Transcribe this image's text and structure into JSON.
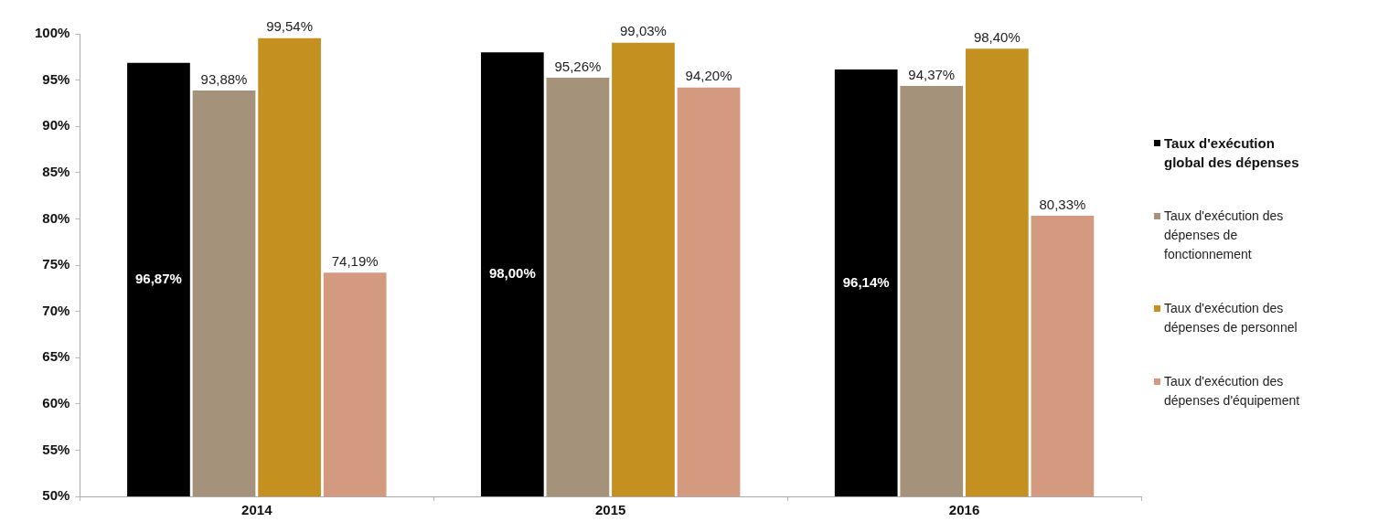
{
  "chart_data": {
    "type": "bar",
    "categories": [
      "2014",
      "2015",
      "2016"
    ],
    "series": [
      {
        "name": "Taux d'exécution global des dépenses",
        "color": "#000000",
        "values": [
          96.87,
          98.0,
          96.14
        ],
        "value_labels": [
          "96,87%",
          "98,00%",
          "96,14%"
        ]
      },
      {
        "name": "Taux d'exécution des dépenses de fonctionnement",
        "color": "#a4937a",
        "values": [
          93.88,
          95.26,
          94.37
        ],
        "value_labels": [
          "93,88%",
          "95,26%",
          "94,37%"
        ]
      },
      {
        "name": "Taux d'exécution des dépenses de personnel",
        "color": "#c4901f",
        "values": [
          99.54,
          99.03,
          98.4
        ],
        "value_labels": [
          "99,54%",
          "99,03%",
          "98,40%"
        ]
      },
      {
        "name": "Taux d'exécution des dépenses d'équipement",
        "color": "#d49a80",
        "values": [
          74.19,
          94.2,
          80.33
        ],
        "value_labels": [
          "74,19%",
          "94,20%",
          "80,33%"
        ]
      }
    ],
    "ylim": [
      50,
      100
    ],
    "yticks": [
      {
        "value": 50,
        "label": "50%"
      },
      {
        "value": 55,
        "label": "55%"
      },
      {
        "value": 60,
        "label": "60%"
      },
      {
        "value": 65,
        "label": "65%"
      },
      {
        "value": 70,
        "label": "70%"
      },
      {
        "value": 75,
        "label": "75%"
      },
      {
        "value": 80,
        "label": "80%"
      },
      {
        "value": 85,
        "label": "85%"
      },
      {
        "value": 90,
        "label": "90%"
      },
      {
        "value": 95,
        "label": "95%"
      },
      {
        "value": 100,
        "label": "100%"
      }
    ],
    "legend": "right"
  }
}
